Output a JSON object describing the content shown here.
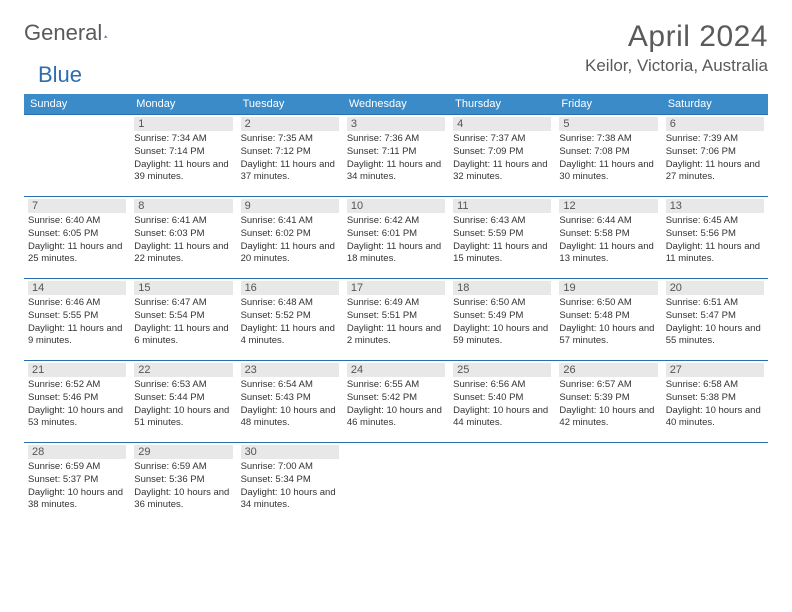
{
  "logo": {
    "text1": "General",
    "text2": "Blue"
  },
  "title": "April 2024",
  "location": "Keilor, Victoria, Australia",
  "colors": {
    "header_bg": "#3b8bc9",
    "border": "#2c6fb0",
    "daynum_bg": "#e8e8e8",
    "text": "#333333",
    "title_text": "#5a5a5a"
  },
  "daynames": [
    "Sunday",
    "Monday",
    "Tuesday",
    "Wednesday",
    "Thursday",
    "Friday",
    "Saturday"
  ],
  "weeks": [
    [
      null,
      {
        "n": "1",
        "sr": "7:34 AM",
        "ss": "7:14 PM",
        "dl": "11 hours and 39 minutes."
      },
      {
        "n": "2",
        "sr": "7:35 AM",
        "ss": "7:12 PM",
        "dl": "11 hours and 37 minutes."
      },
      {
        "n": "3",
        "sr": "7:36 AM",
        "ss": "7:11 PM",
        "dl": "11 hours and 34 minutes."
      },
      {
        "n": "4",
        "sr": "7:37 AM",
        "ss": "7:09 PM",
        "dl": "11 hours and 32 minutes."
      },
      {
        "n": "5",
        "sr": "7:38 AM",
        "ss": "7:08 PM",
        "dl": "11 hours and 30 minutes."
      },
      {
        "n": "6",
        "sr": "7:39 AM",
        "ss": "7:06 PM",
        "dl": "11 hours and 27 minutes."
      }
    ],
    [
      {
        "n": "7",
        "sr": "6:40 AM",
        "ss": "6:05 PM",
        "dl": "11 hours and 25 minutes."
      },
      {
        "n": "8",
        "sr": "6:41 AM",
        "ss": "6:03 PM",
        "dl": "11 hours and 22 minutes."
      },
      {
        "n": "9",
        "sr": "6:41 AM",
        "ss": "6:02 PM",
        "dl": "11 hours and 20 minutes."
      },
      {
        "n": "10",
        "sr": "6:42 AM",
        "ss": "6:01 PM",
        "dl": "11 hours and 18 minutes."
      },
      {
        "n": "11",
        "sr": "6:43 AM",
        "ss": "5:59 PM",
        "dl": "11 hours and 15 minutes."
      },
      {
        "n": "12",
        "sr": "6:44 AM",
        "ss": "5:58 PM",
        "dl": "11 hours and 13 minutes."
      },
      {
        "n": "13",
        "sr": "6:45 AM",
        "ss": "5:56 PM",
        "dl": "11 hours and 11 minutes."
      }
    ],
    [
      {
        "n": "14",
        "sr": "6:46 AM",
        "ss": "5:55 PM",
        "dl": "11 hours and 9 minutes."
      },
      {
        "n": "15",
        "sr": "6:47 AM",
        "ss": "5:54 PM",
        "dl": "11 hours and 6 minutes."
      },
      {
        "n": "16",
        "sr": "6:48 AM",
        "ss": "5:52 PM",
        "dl": "11 hours and 4 minutes."
      },
      {
        "n": "17",
        "sr": "6:49 AM",
        "ss": "5:51 PM",
        "dl": "11 hours and 2 minutes."
      },
      {
        "n": "18",
        "sr": "6:50 AM",
        "ss": "5:49 PM",
        "dl": "10 hours and 59 minutes."
      },
      {
        "n": "19",
        "sr": "6:50 AM",
        "ss": "5:48 PM",
        "dl": "10 hours and 57 minutes."
      },
      {
        "n": "20",
        "sr": "6:51 AM",
        "ss": "5:47 PM",
        "dl": "10 hours and 55 minutes."
      }
    ],
    [
      {
        "n": "21",
        "sr": "6:52 AM",
        "ss": "5:46 PM",
        "dl": "10 hours and 53 minutes."
      },
      {
        "n": "22",
        "sr": "6:53 AM",
        "ss": "5:44 PM",
        "dl": "10 hours and 51 minutes."
      },
      {
        "n": "23",
        "sr": "6:54 AM",
        "ss": "5:43 PM",
        "dl": "10 hours and 48 minutes."
      },
      {
        "n": "24",
        "sr": "6:55 AM",
        "ss": "5:42 PM",
        "dl": "10 hours and 46 minutes."
      },
      {
        "n": "25",
        "sr": "6:56 AM",
        "ss": "5:40 PM",
        "dl": "10 hours and 44 minutes."
      },
      {
        "n": "26",
        "sr": "6:57 AM",
        "ss": "5:39 PM",
        "dl": "10 hours and 42 minutes."
      },
      {
        "n": "27",
        "sr": "6:58 AM",
        "ss": "5:38 PM",
        "dl": "10 hours and 40 minutes."
      }
    ],
    [
      {
        "n": "28",
        "sr": "6:59 AM",
        "ss": "5:37 PM",
        "dl": "10 hours and 38 minutes."
      },
      {
        "n": "29",
        "sr": "6:59 AM",
        "ss": "5:36 PM",
        "dl": "10 hours and 36 minutes."
      },
      {
        "n": "30",
        "sr": "7:00 AM",
        "ss": "5:34 PM",
        "dl": "10 hours and 34 minutes."
      },
      null,
      null,
      null,
      null
    ]
  ],
  "labels": {
    "sunrise": "Sunrise:",
    "sunset": "Sunset:",
    "daylight": "Daylight:"
  }
}
